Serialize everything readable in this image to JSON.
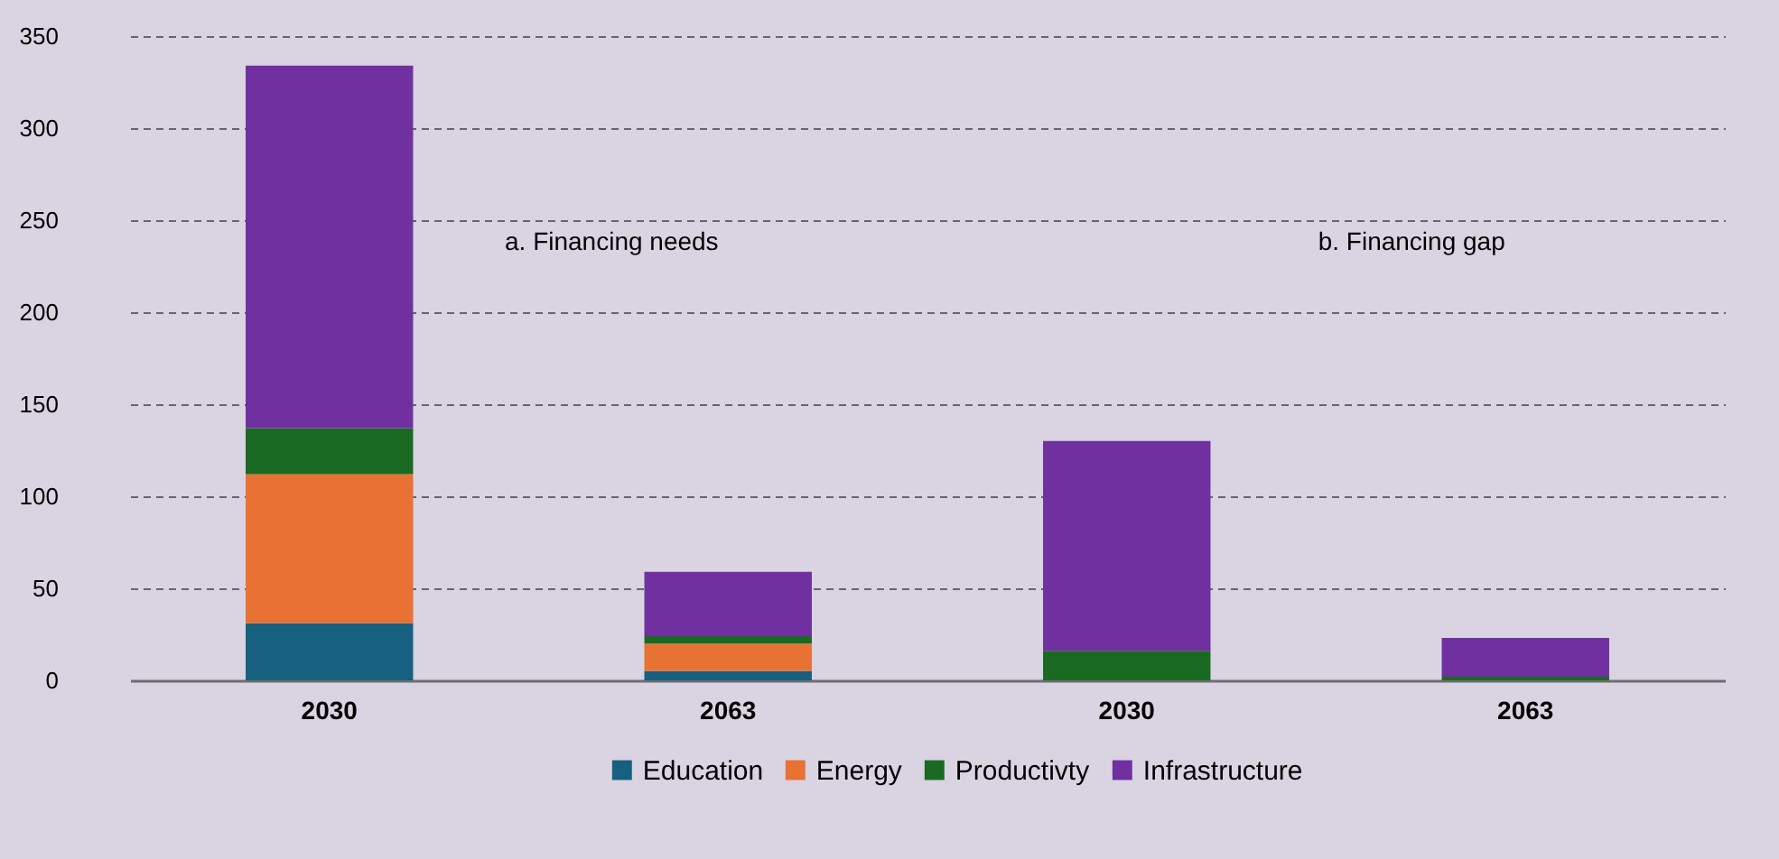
{
  "chart_data": {
    "type": "bar",
    "stacked": true,
    "categories": [
      "2030",
      "2063",
      "2030",
      "2063"
    ],
    "series": [
      {
        "name": "Education",
        "color": "#17607f",
        "values": [
          31,
          5,
          0,
          0
        ]
      },
      {
        "name": "Energy",
        "color": "#e87234",
        "values": [
          81,
          15,
          0,
          0
        ]
      },
      {
        "name": "Productivty",
        "color": "#1b6a23",
        "values": [
          25,
          4,
          16,
          2
        ]
      },
      {
        "name": "Infrastructure",
        "color": "#7030a0",
        "values": [
          197,
          35,
          114,
          21
        ]
      }
    ],
    "ylim": [
      0,
      350
    ],
    "yticks": [
      0,
      50,
      100,
      150,
      200,
      250,
      300,
      350
    ],
    "grid": "y",
    "legend": "bottom",
    "annotations": [
      "a. Financing needs",
      "b. Financing gap"
    ]
  }
}
